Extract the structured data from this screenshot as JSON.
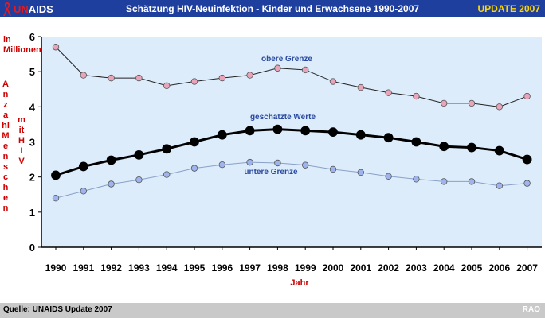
{
  "header": {
    "logo_text_red": "UN",
    "logo_text_white": "AIDS",
    "title": "Schätzung HIV-Neuinfektion - Kinder und Erwachsene 1990-2007",
    "badge": "UPDATE 2007",
    "colors": {
      "background": "#1f3f9e",
      "badge": "#ffd700",
      "ribbon": "#e11b22"
    }
  },
  "footer": {
    "source": "Quelle: UNAIDS Update 2007",
    "tag": "RAO"
  },
  "chart_data": {
    "type": "line",
    "title": "Schätzung HIV-Neuinfektion - Kinder und Erwachsene 1990-2007",
    "xlabel": "Jahr",
    "ylabel_unit": "in Millionen",
    "ylabel_main": "Anzahl Menschen",
    "ylabel_sub": "mit HIV",
    "ylim": [
      0,
      6
    ],
    "yticks": [
      0,
      1,
      2,
      3,
      4,
      5,
      6
    ],
    "categories": [
      "1990",
      "1991",
      "1992",
      "1993",
      "1994",
      "1995",
      "1996",
      "1997",
      "1998",
      "1999",
      "2000",
      "2001",
      "2002",
      "2003",
      "2004",
      "2005",
      "2006",
      "2007"
    ],
    "series": [
      {
        "name": "obere Grenze",
        "color": "#e8a4b8",
        "stroke": "#222222",
        "values": [
          5.7,
          4.9,
          4.82,
          4.82,
          4.6,
          4.72,
          4.82,
          4.9,
          5.1,
          5.05,
          4.72,
          4.55,
          4.4,
          4.3,
          4.1,
          4.1,
          4.0,
          4.3
        ]
      },
      {
        "name": "geschätzte Werte",
        "color": "#000000",
        "stroke": "#000000",
        "values": [
          2.05,
          2.3,
          2.48,
          2.63,
          2.8,
          3.0,
          3.2,
          3.32,
          3.36,
          3.32,
          3.28,
          3.2,
          3.12,
          3.0,
          2.87,
          2.84,
          2.75,
          2.5
        ]
      },
      {
        "name": "untere Grenze",
        "color": "#9db4ee",
        "stroke": "#8aa0c8",
        "values": [
          1.4,
          1.6,
          1.8,
          1.92,
          2.07,
          2.25,
          2.35,
          2.42,
          2.4,
          2.34,
          2.22,
          2.13,
          2.02,
          1.94,
          1.87,
          1.87,
          1.75,
          1.82
        ]
      }
    ],
    "series_label_color": "#2a4aa0",
    "grid": false
  }
}
